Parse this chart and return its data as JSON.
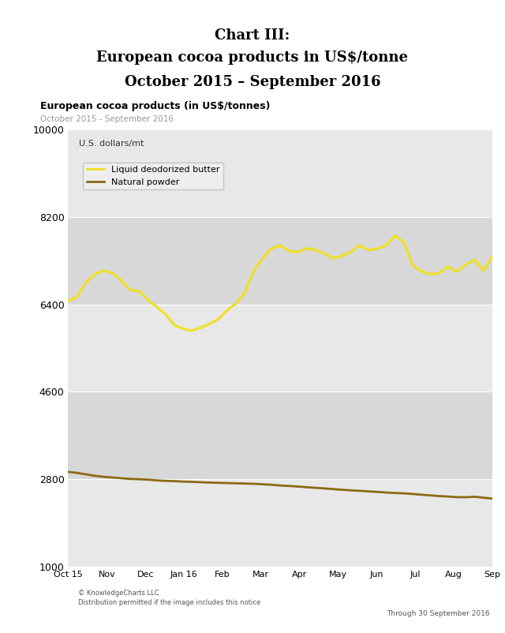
{
  "title_line1": "Chart III:",
  "title_line2": "European cocoa products in US$/tonne",
  "title_line3": "October 2015 – September 2016",
  "chart_title": "European cocoa products (in US$/tonnes)",
  "chart_subtitle": "October 2015 - September 2016",
  "ylabel_text": "U.S. dollars/mt",
  "yticks": [
    1000,
    2800,
    4600,
    6400,
    8200,
    10000
  ],
  "ylim": [
    1000,
    10000
  ],
  "background_color": "#ffffff",
  "plot_bg_light": "#e8e8e8",
  "plot_bg_dark": "#d8d8d8",
  "legend_bg_color": "#f0f0f0",
  "footer_left": "© KnowledgeCharts LLC\nDistribution permitted if the image includes this notice",
  "footer_right": "Through 30 September 2016",
  "xtick_labels": [
    "Oct 15",
    "Nov",
    "Dec",
    "Jan 16",
    "Feb",
    "Mar",
    "Apr",
    "May",
    "Jun",
    "Jul",
    "Aug",
    "Sep"
  ],
  "butter_color": "#efe020",
  "powder_color": "#8b6914",
  "butter_label": "Liquid deodorized butter",
  "powder_label": "Natural powder",
  "butter_data": [
    6480,
    6550,
    6850,
    7020,
    7100,
    7050,
    6900,
    6700,
    6680,
    6500,
    6350,
    6200,
    5980,
    5900,
    5860,
    5920,
    6000,
    6100,
    6280,
    6420,
    6650,
    7100,
    7350,
    7550,
    7620,
    7500,
    7480,
    7560,
    7520,
    7450,
    7350,
    7400,
    7480,
    7620,
    7520,
    7550,
    7620,
    7820,
    7680,
    7200,
    7080,
    7020,
    7050,
    7180,
    7080,
    7220,
    7320,
    7100,
    7380
  ],
  "powder_data": [
    2950,
    2930,
    2900,
    2870,
    2850,
    2835,
    2820,
    2805,
    2800,
    2790,
    2775,
    2765,
    2760,
    2750,
    2745,
    2738,
    2730,
    2725,
    2720,
    2715,
    2710,
    2705,
    2695,
    2685,
    2670,
    2660,
    2648,
    2635,
    2622,
    2610,
    2595,
    2582,
    2570,
    2560,
    2548,
    2538,
    2525,
    2515,
    2508,
    2495,
    2480,
    2465,
    2452,
    2442,
    2430,
    2428,
    2438,
    2418,
    2400
  ]
}
